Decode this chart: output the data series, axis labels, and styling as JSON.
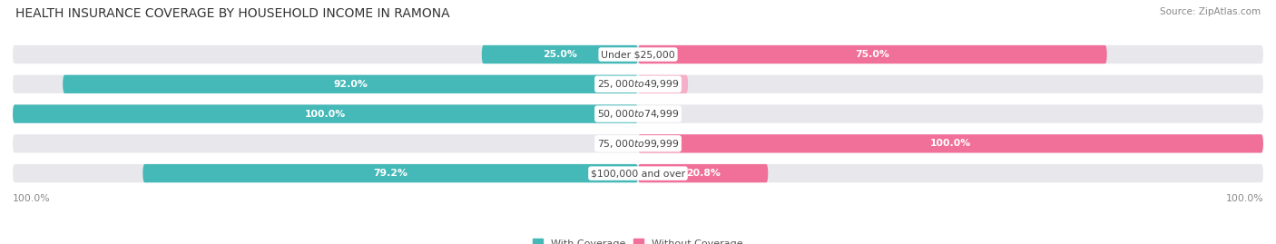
{
  "title": "HEALTH INSURANCE COVERAGE BY HOUSEHOLD INCOME IN RAMONA",
  "source": "Source: ZipAtlas.com",
  "categories": [
    "Under $25,000",
    "$25,000 to $49,999",
    "$50,000 to $74,999",
    "$75,000 to $99,999",
    "$100,000 and over"
  ],
  "with_coverage": [
    25.0,
    92.0,
    100.0,
    0.0,
    79.2
  ],
  "without_coverage": [
    75.0,
    8.0,
    0.0,
    100.0,
    20.8
  ],
  "color_with": "#45b8b8",
  "color_with_light": "#a8d8d8",
  "color_without": "#f0709a",
  "color_without_light": "#f5afc8",
  "bg_color": "#ffffff",
  "bar_bg_color": "#e8e8ec",
  "figsize": [
    14.06,
    2.69
  ],
  "dpi": 100,
  "title_fontsize": 10,
  "label_fontsize": 7.8,
  "value_fontsize": 7.8,
  "legend_fontsize": 8,
  "source_fontsize": 7.5
}
